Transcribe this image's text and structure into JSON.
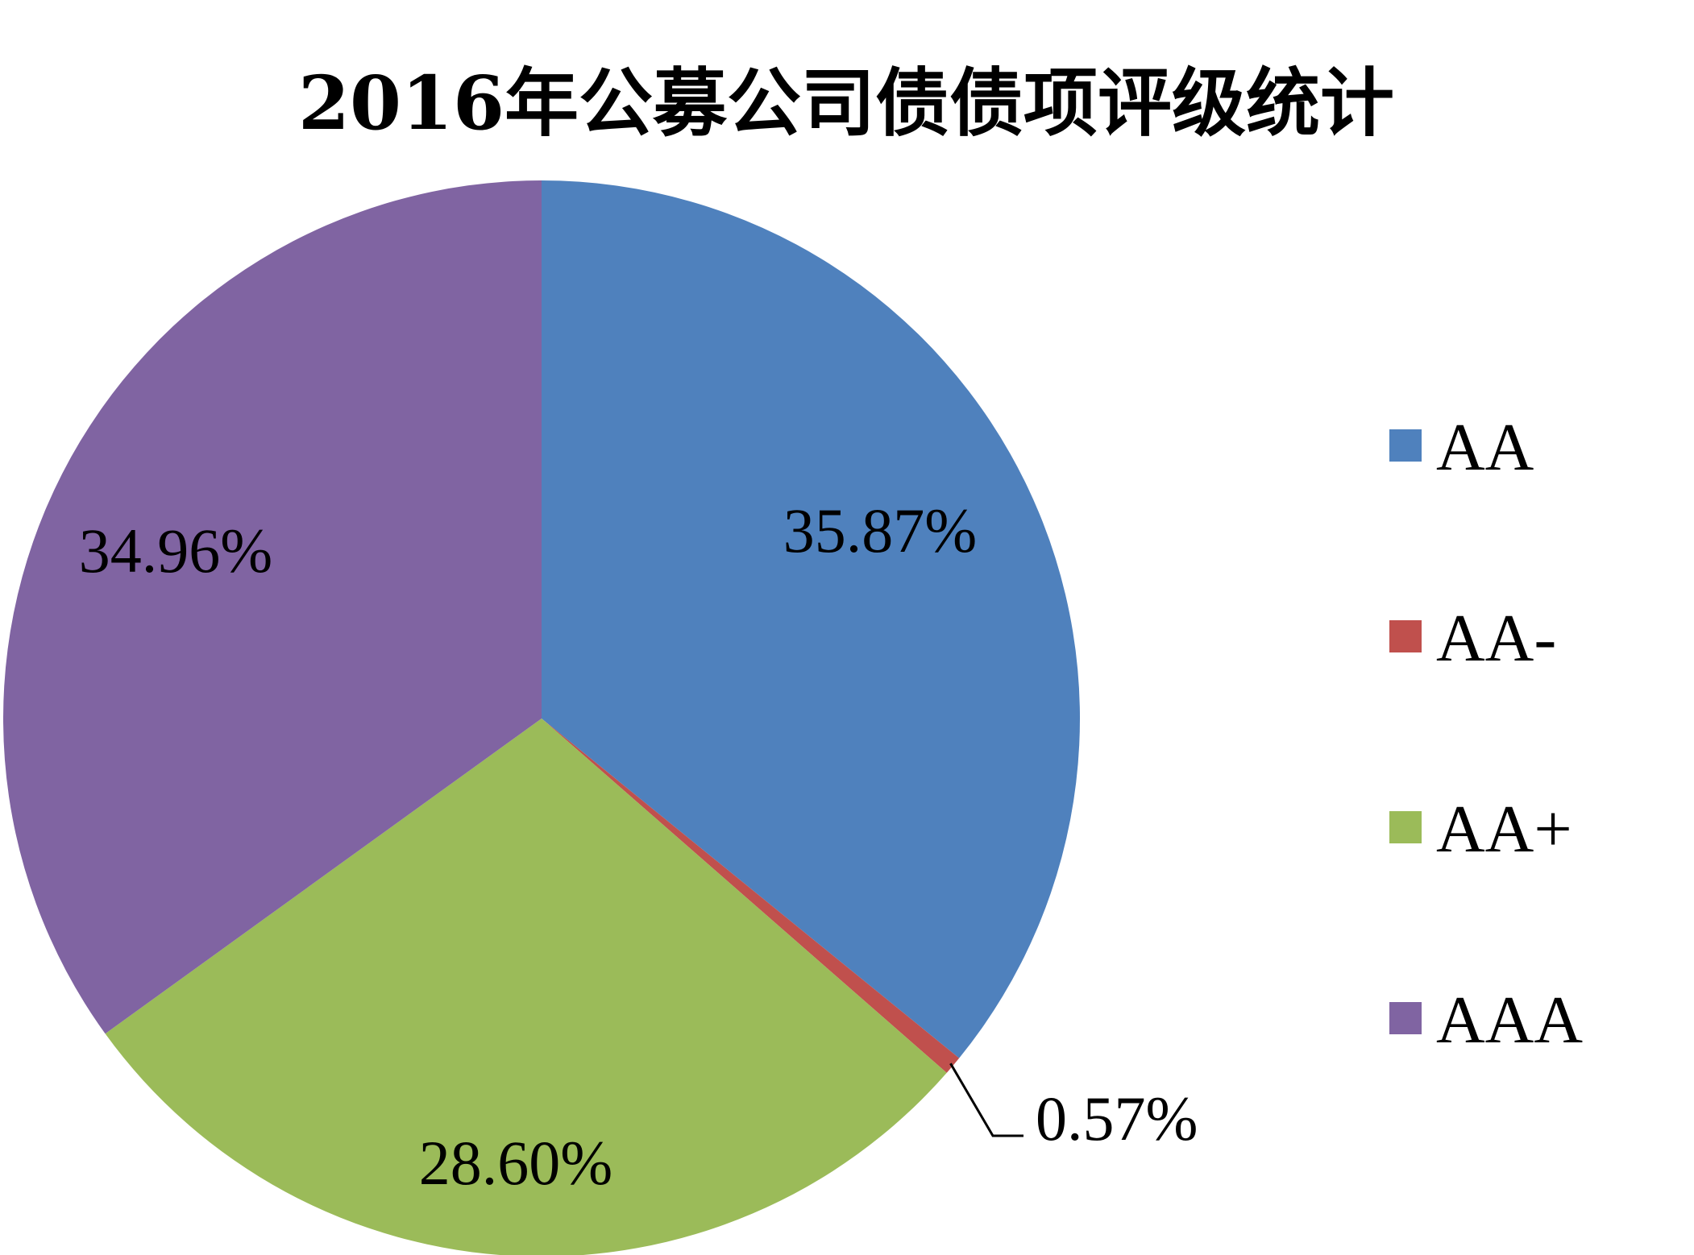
{
  "chart_data": {
    "type": "pie",
    "title": "2016年公募公司债债项评级统计",
    "slices": [
      {
        "name": "AA",
        "value": 35.87,
        "label": "35.87%",
        "color": "#4F81BD"
      },
      {
        "name": "AA-",
        "value": 0.57,
        "label": "0.57%",
        "color": "#C0504D"
      },
      {
        "name": "AA+",
        "value": 28.6,
        "label": "28.60%",
        "color": "#9BBB59"
      },
      {
        "name": "AAA",
        "value": 34.96,
        "label": "34.96%",
        "color": "#8064A2"
      }
    ],
    "start_angle": "12 o'clock",
    "direction": "clockwise",
    "legend": {
      "position": "right",
      "entries": [
        "AA",
        "AA-",
        "AA+",
        "AAA"
      ]
    }
  }
}
